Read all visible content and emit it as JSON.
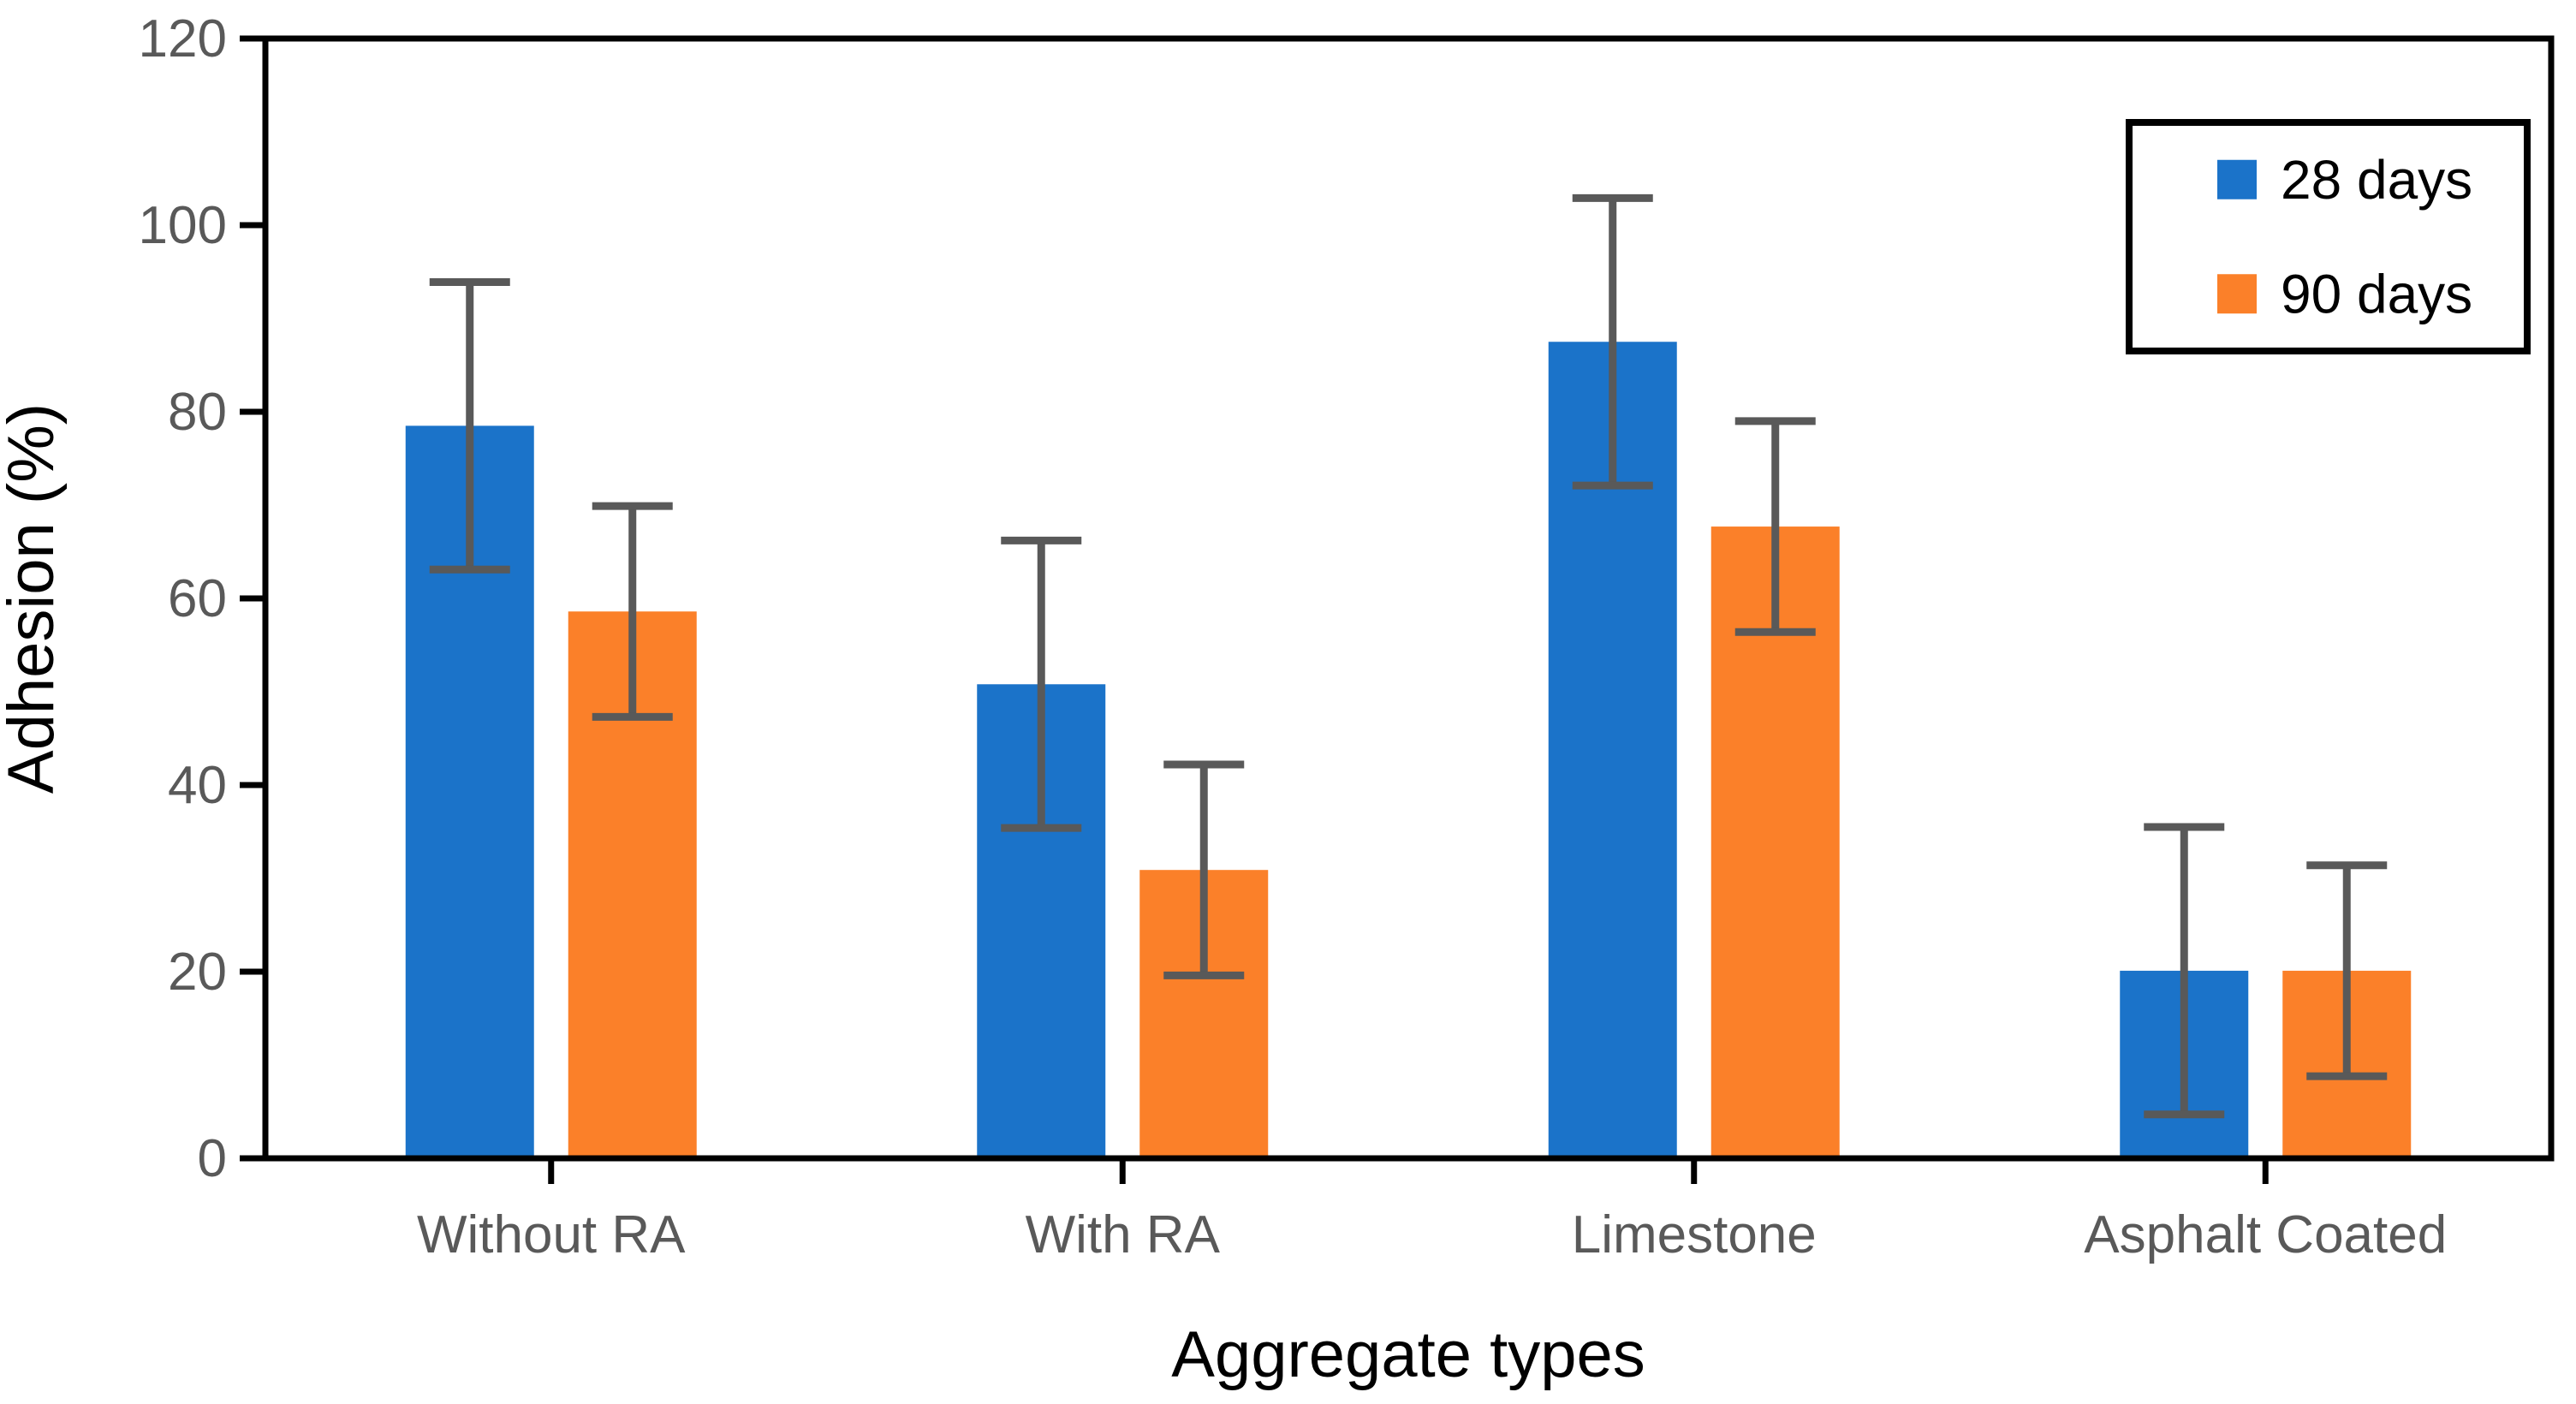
{
  "chart_data": {
    "type": "bar",
    "title": "",
    "xlabel": "Aggregate types",
    "ylabel": "Adhesion (%)",
    "categories": [
      "Without RA",
      "With RA",
      "Limestone",
      "Asphalt Coated"
    ],
    "series": [
      {
        "name": "28 days",
        "color": "#1B73C9",
        "values": [
          78.5,
          50.8,
          87.5,
          20.1
        ],
        "error": 15.4
      },
      {
        "name": "90 days",
        "color": "#FB8029",
        "values": [
          58.6,
          30.9,
          67.7,
          20.1
        ],
        "error": 11.3
      }
    ],
    "ylim": [
      0,
      120
    ],
    "yticks": [
      0,
      20,
      40,
      60,
      80,
      100,
      120
    ],
    "grid": false,
    "legend_position": "top-right",
    "colors": {
      "error_bar": "#595959",
      "tick_label": "#595959",
      "category_label": "#595959",
      "axis_title": "#000000",
      "frame": "#000000",
      "background": "#ffffff"
    }
  }
}
